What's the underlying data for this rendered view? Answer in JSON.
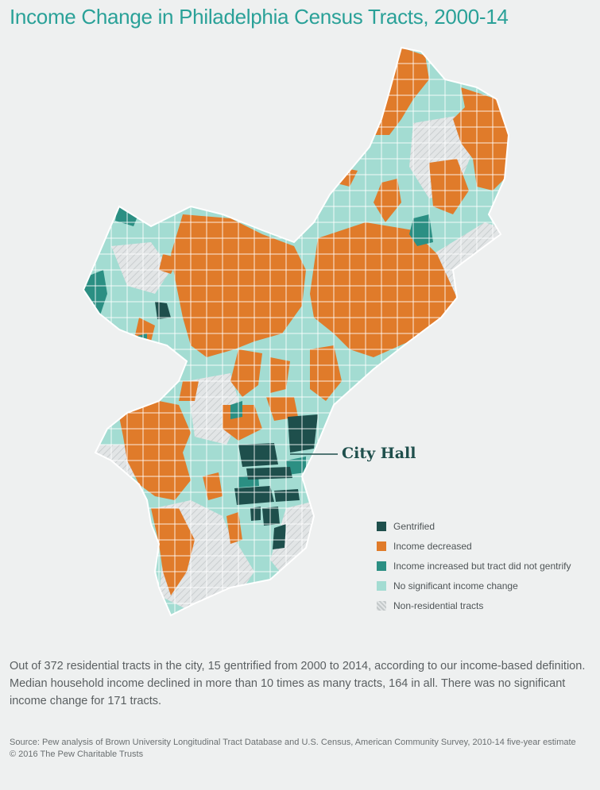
{
  "title": "Income Change in Philadelphia Census Tracts, 2000-14",
  "callout": {
    "label": "City Hall"
  },
  "legend": {
    "items": [
      {
        "label": "Gentrified",
        "color": "#1e4f4c",
        "pattern": false
      },
      {
        "label": "Income decreased",
        "color": "#e07b2a",
        "pattern": false
      },
      {
        "label": "Income increased but tract did not gentrify",
        "color": "#2b8f83",
        "pattern": false
      },
      {
        "label": "No significant income change",
        "color": "#a3dcd2",
        "pattern": false
      },
      {
        "label": "Non-residential tracts",
        "color": "#d8dcdd",
        "pattern": true
      }
    ]
  },
  "description": "Out of 372 residential tracts in the city, 15 gentrified from 2000 to 2014, according to our income-based definition. Median household income declined in more than 10 times as many tracts, 164 in all. There was no significant income change for 171 tracts.",
  "footer": {
    "source": "Source: Pew analysis of Brown University Longitudinal Tract Database and U.S. Census, American Community Survey, 2010-14 five-year estimate",
    "copyright": "© 2016 The Pew Charitable Trusts"
  },
  "colors": {
    "gentrified": "#1e4f4c",
    "decreased": "#e07b2a",
    "increased": "#2b8f83",
    "no_change": "#a3dcd2",
    "non_residential": "#d8dcdd"
  }
}
